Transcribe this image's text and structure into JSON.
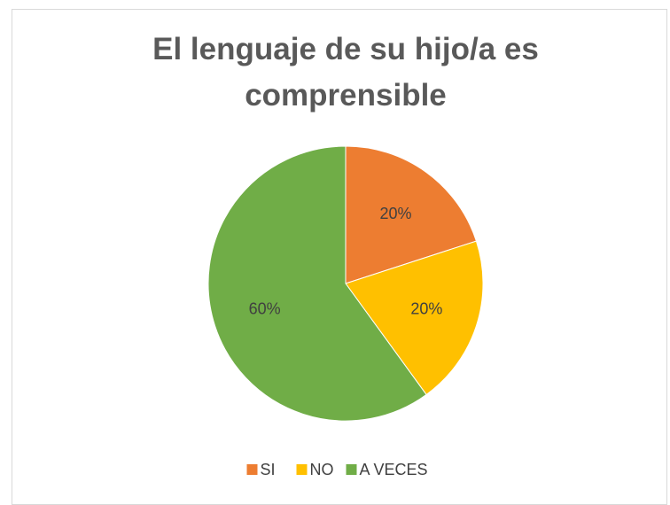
{
  "chart_data": {
    "type": "pie",
    "title": "El lenguaje de su hijo/a es comprensible",
    "categories": [
      "SI",
      "NO",
      "A VECES"
    ],
    "values": [
      20,
      20,
      60
    ],
    "value_labels": [
      "20%",
      "20%",
      "60%"
    ],
    "colors": [
      "#ED7D31",
      "#FFC000",
      "#70AD47"
    ],
    "legend": "bottom"
  }
}
